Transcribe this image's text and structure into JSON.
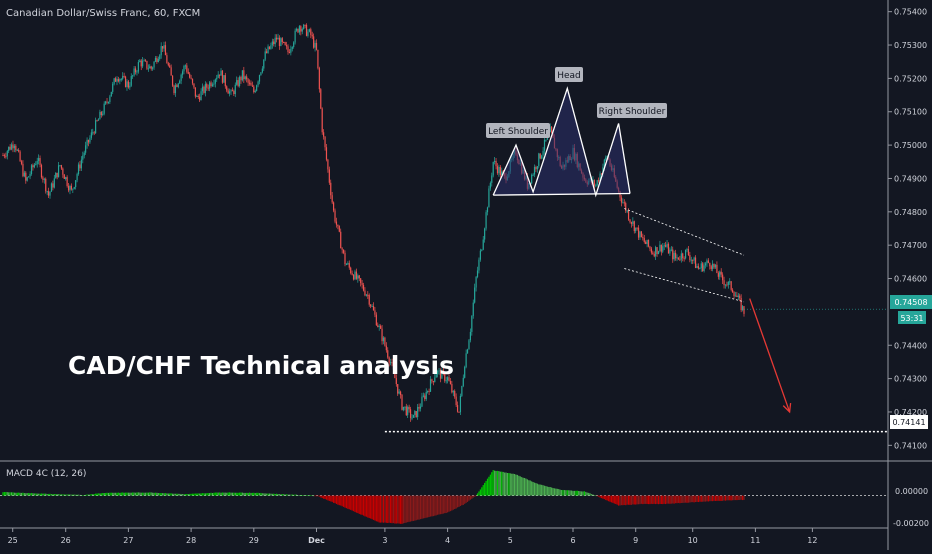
{
  "header": {
    "symbol_title": "Canadian Dollar/Swiss Franc, 60, FXCM"
  },
  "overlay": {
    "analysis_title": "CAD/CHF Technical analysis"
  },
  "annotations": {
    "left_shoulder": "Left Shoulder",
    "head": "Head",
    "right_shoulder": "Right Shoulder"
  },
  "badges": {
    "last_price": "0.74508",
    "countdown": "53:31",
    "support_price": "0.74141"
  },
  "macd": {
    "label": "MACD 4C (12, 26)",
    "ticks": [
      "0.00000",
      "-0.00200"
    ]
  },
  "colors": {
    "background": "#131722",
    "up": "#26a69a",
    "down": "#ef5350",
    "macd_up_strong": "#00c800",
    "macd_up_weak": "#4caf50",
    "macd_down_strong": "#c80000",
    "macd_down_weak": "#8b1a1a",
    "pattern_fill": "#2b2f6b",
    "arrow": "#e53935"
  },
  "chart_data": {
    "type": "candlestick",
    "title": "Canadian Dollar/Swiss Franc, 60, FXCM",
    "y_ticks": [
      "0.75400",
      "0.75300",
      "0.75200",
      "0.75100",
      "0.75000",
      "0.74900",
      "0.74800",
      "0.74700",
      "0.74600",
      "0.74400",
      "0.74300",
      "0.74200",
      "0.74100"
    ],
    "ylim": [
      0.7408,
      0.7542
    ],
    "x_ticks": [
      "25",
      "26",
      "27",
      "28",
      "29",
      "Dec",
      "3",
      "4",
      "5",
      "6",
      "9",
      "10",
      "11",
      "12"
    ],
    "price_path": [
      [
        0,
        0.7497
      ],
      [
        2,
        0.7501
      ],
      [
        4,
        0.7489
      ],
      [
        6,
        0.7496
      ],
      [
        8,
        0.7485
      ],
      [
        10,
        0.7494
      ],
      [
        12,
        0.7486
      ],
      [
        14,
        0.7497
      ],
      [
        16,
        0.7505
      ],
      [
        18,
        0.7512
      ],
      [
        20,
        0.7521
      ],
      [
        22,
        0.7518
      ],
      [
        24,
        0.7525
      ],
      [
        26,
        0.7523
      ],
      [
        28,
        0.753
      ],
      [
        30,
        0.7517
      ],
      [
        32,
        0.7524
      ],
      [
        34,
        0.7514
      ],
      [
        36,
        0.7518
      ],
      [
        38,
        0.7522
      ],
      [
        40,
        0.7515
      ],
      [
        42,
        0.7521
      ],
      [
        44,
        0.7516
      ],
      [
        46,
        0.7527
      ],
      [
        48,
        0.7532
      ],
      [
        50,
        0.7528
      ],
      [
        52,
        0.7536
      ],
      [
        54,
        0.7533
      ],
      [
        55,
        0.7528
      ],
      [
        56,
        0.7505
      ],
      [
        58,
        0.748
      ],
      [
        60,
        0.7465
      ],
      [
        62,
        0.746
      ],
      [
        64,
        0.7455
      ],
      [
        66,
        0.7445
      ],
      [
        68,
        0.7435
      ],
      [
        70,
        0.7422
      ],
      [
        72,
        0.7418
      ],
      [
        74,
        0.7425
      ],
      [
        76,
        0.7432
      ],
      [
        78,
        0.743
      ],
      [
        80,
        0.742
      ],
      [
        81,
        0.7435
      ],
      [
        82,
        0.7445
      ],
      [
        83,
        0.746
      ],
      [
        84,
        0.747
      ],
      [
        86,
        0.7495
      ],
      [
        88,
        0.749
      ],
      [
        90,
        0.7498
      ],
      [
        92,
        0.7488
      ],
      [
        94,
        0.7496
      ],
      [
        96,
        0.7504
      ],
      [
        98,
        0.7493
      ],
      [
        100,
        0.7498
      ],
      [
        102,
        0.749
      ],
      [
        104,
        0.7488
      ],
      [
        106,
        0.7497
      ],
      [
        108,
        0.7486
      ],
      [
        110,
        0.7478
      ],
      [
        112,
        0.7472
      ],
      [
        114,
        0.7468
      ],
      [
        116,
        0.747
      ],
      [
        118,
        0.7466
      ],
      [
        120,
        0.7468
      ],
      [
        122,
        0.7463
      ],
      [
        124,
        0.7465
      ],
      [
        126,
        0.746
      ],
      [
        128,
        0.7457
      ],
      [
        130,
        0.745
      ]
    ],
    "macd_path": [
      [
        0,
        0.00025
      ],
      [
        8,
        0.00012
      ],
      [
        14,
        4e-05
      ],
      [
        18,
        0.0002
      ],
      [
        26,
        0.00022
      ],
      [
        32,
        0.0001
      ],
      [
        38,
        0.00022
      ],
      [
        44,
        0.0002
      ],
      [
        50,
        8e-05
      ],
      [
        55,
        0.0
      ],
      [
        58,
        -0.0005
      ],
      [
        62,
        -0.0012
      ],
      [
        66,
        -0.0019
      ],
      [
        70,
        -0.002
      ],
      [
        74,
        -0.0016
      ],
      [
        78,
        -0.0012
      ],
      [
        81,
        -0.0006
      ],
      [
        83,
        0.0
      ],
      [
        86,
        0.0018
      ],
      [
        90,
        0.0015
      ],
      [
        94,
        0.0008
      ],
      [
        98,
        0.0004
      ],
      [
        102,
        0.0003
      ],
      [
        104,
        0.0
      ],
      [
        108,
        -0.0007
      ],
      [
        112,
        -0.0006
      ],
      [
        116,
        -0.0006
      ],
      [
        120,
        -0.0005
      ],
      [
        124,
        -0.0004
      ],
      [
        130,
        -0.0003
      ]
    ],
    "macd_ylim": [
      -0.0023,
      0.0021
    ],
    "support_level": 0.74141,
    "last_price": 0.74508,
    "head_and_shoulders": {
      "neckline": [
        [
          86,
          0.7485
        ],
        [
          110,
          0.74855
        ]
      ],
      "outline": [
        [
          86,
          0.7485
        ],
        [
          90,
          0.75
        ],
        [
          93,
          0.7486
        ],
        [
          99,
          0.7517
        ],
        [
          104,
          0.7485
        ],
        [
          108,
          0.75065
        ],
        [
          110,
          0.74855
        ]
      ]
    },
    "channel": {
      "upper": [
        [
          109,
          0.7481
        ],
        [
          130,
          0.7467
        ]
      ],
      "lower": [
        [
          109,
          0.7463
        ],
        [
          130,
          0.7453
        ]
      ]
    },
    "arrow": [
      [
        131,
        0.7454
      ],
      [
        138,
        0.742
      ]
    ],
    "x_tick_positions": [
      1,
      11,
      22,
      33,
      44,
      55,
      67,
      78,
      89,
      100,
      111,
      121,
      132,
      142
    ]
  }
}
